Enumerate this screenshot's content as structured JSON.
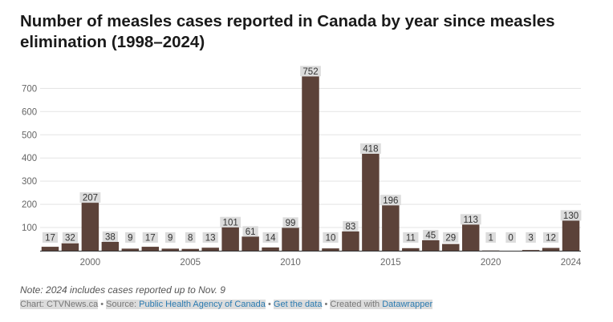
{
  "title": "Number of measles cases reported in Canada by year since measles elimination (1998–2024)",
  "note": "Note: 2024 includes cases reported up to Nov. 9",
  "footer": {
    "chart_prefix": "Chart: ",
    "chart_by": "CTVNews.ca",
    "sep": " • ",
    "source_prefix": "Source: ",
    "source": "Public Health Agency of Canada",
    "get_data": "Get the data",
    "created_prefix": "Created with ",
    "created_with": "Datawrapper"
  },
  "colors": {
    "bar": "#5c4239",
    "grid": "#e3e3e3",
    "label_bg": "#dcdcdc",
    "axis_text": "#666666"
  },
  "chart_data": {
    "type": "bar",
    "title": "Number of measles cases reported in Canada by year since measles elimination (1998–2024)",
    "categories": [
      1998,
      1999,
      2000,
      2001,
      2002,
      2003,
      2004,
      2005,
      2006,
      2007,
      2008,
      2009,
      2010,
      2011,
      2012,
      2013,
      2014,
      2015,
      2016,
      2017,
      2018,
      2019,
      2020,
      2021,
      2022,
      2023,
      2024
    ],
    "values": [
      17,
      32,
      207,
      38,
      9,
      17,
      9,
      8,
      13,
      101,
      61,
      14,
      99,
      752,
      10,
      83,
      418,
      196,
      11,
      45,
      29,
      113,
      1,
      0,
      3,
      12,
      130
    ],
    "y_ticks": [
      100,
      200,
      300,
      400,
      500,
      600,
      700
    ],
    "x_ticks": [
      2000,
      2005,
      2010,
      2015,
      2020,
      2024
    ],
    "ylim": [
      0,
      780
    ],
    "grid": true,
    "xlabel": "",
    "ylabel": ""
  }
}
